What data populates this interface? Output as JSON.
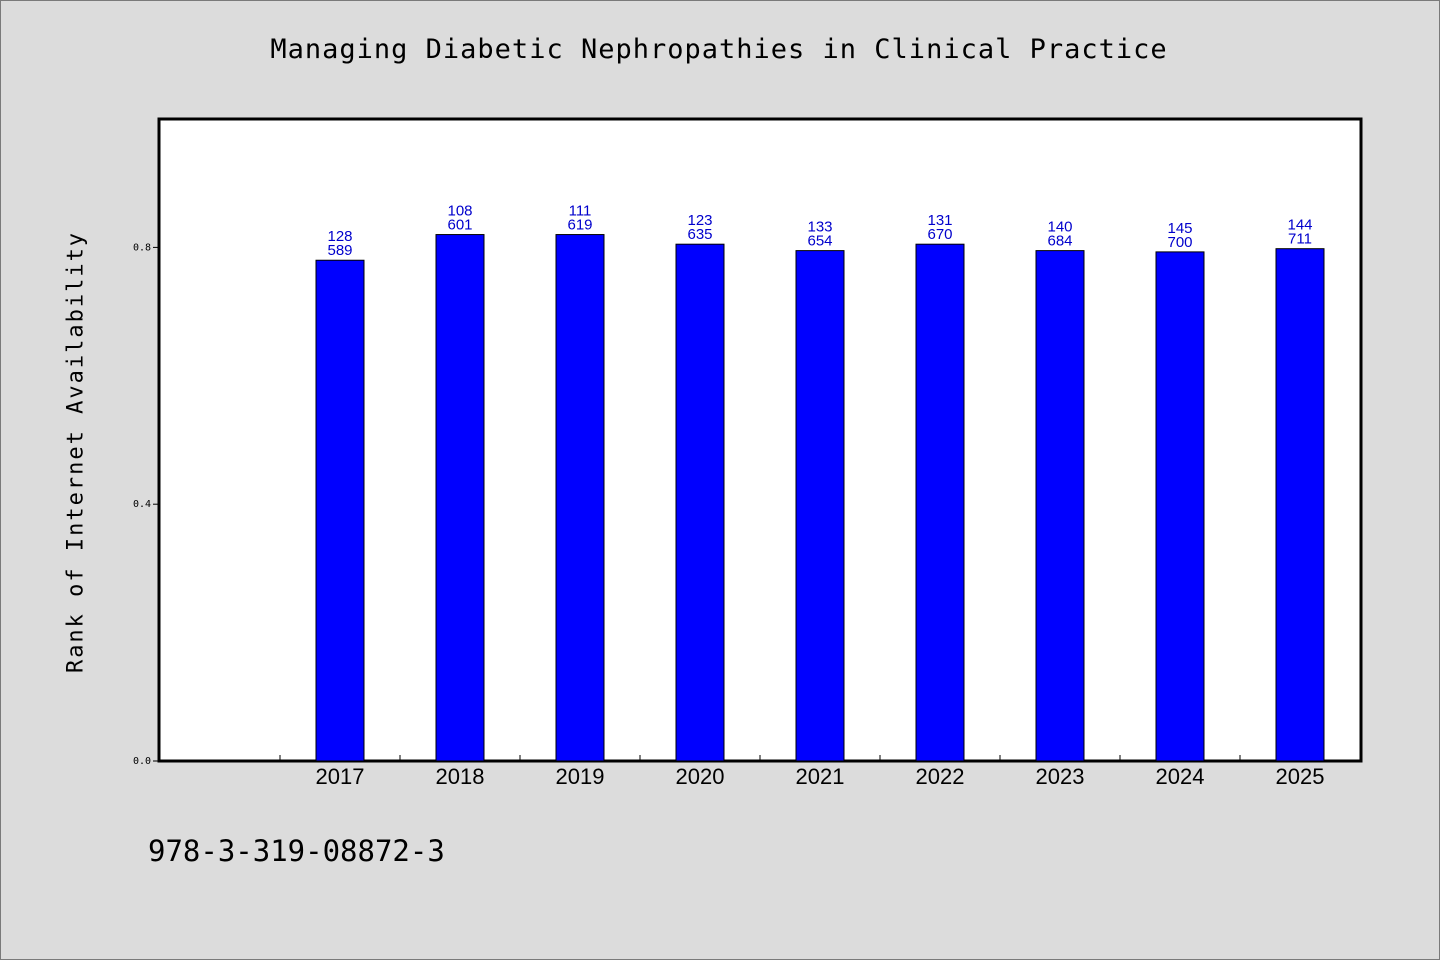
{
  "chart_data": {
    "type": "bar",
    "title": "Managing Diabetic Nephropathies in Clinical Practice",
    "xlabel": "",
    "ylabel": "Rank of Internet Availability",
    "categories": [
      "2017",
      "2018",
      "2019",
      "2020",
      "2021",
      "2022",
      "2023",
      "2024",
      "2025"
    ],
    "values": [
      0.78,
      0.82,
      0.82,
      0.805,
      0.795,
      0.805,
      0.795,
      0.793,
      0.798
    ],
    "data_labels_top": [
      "128",
      "108",
      "111",
      "123",
      "133",
      "131",
      "140",
      "145",
      "144"
    ],
    "data_labels_bottom": [
      "589",
      "601",
      "619",
      "635",
      "654",
      "670",
      "684",
      "700",
      "711"
    ],
    "ylim": [
      0,
      1.0
    ],
    "y_ticks": [
      "0.0",
      "0.4",
      "0.8"
    ],
    "grid": false,
    "bar_color": "#0000ff",
    "label_color": "#0000cc"
  },
  "footer": {
    "code": "978-3-319-08872-3"
  }
}
